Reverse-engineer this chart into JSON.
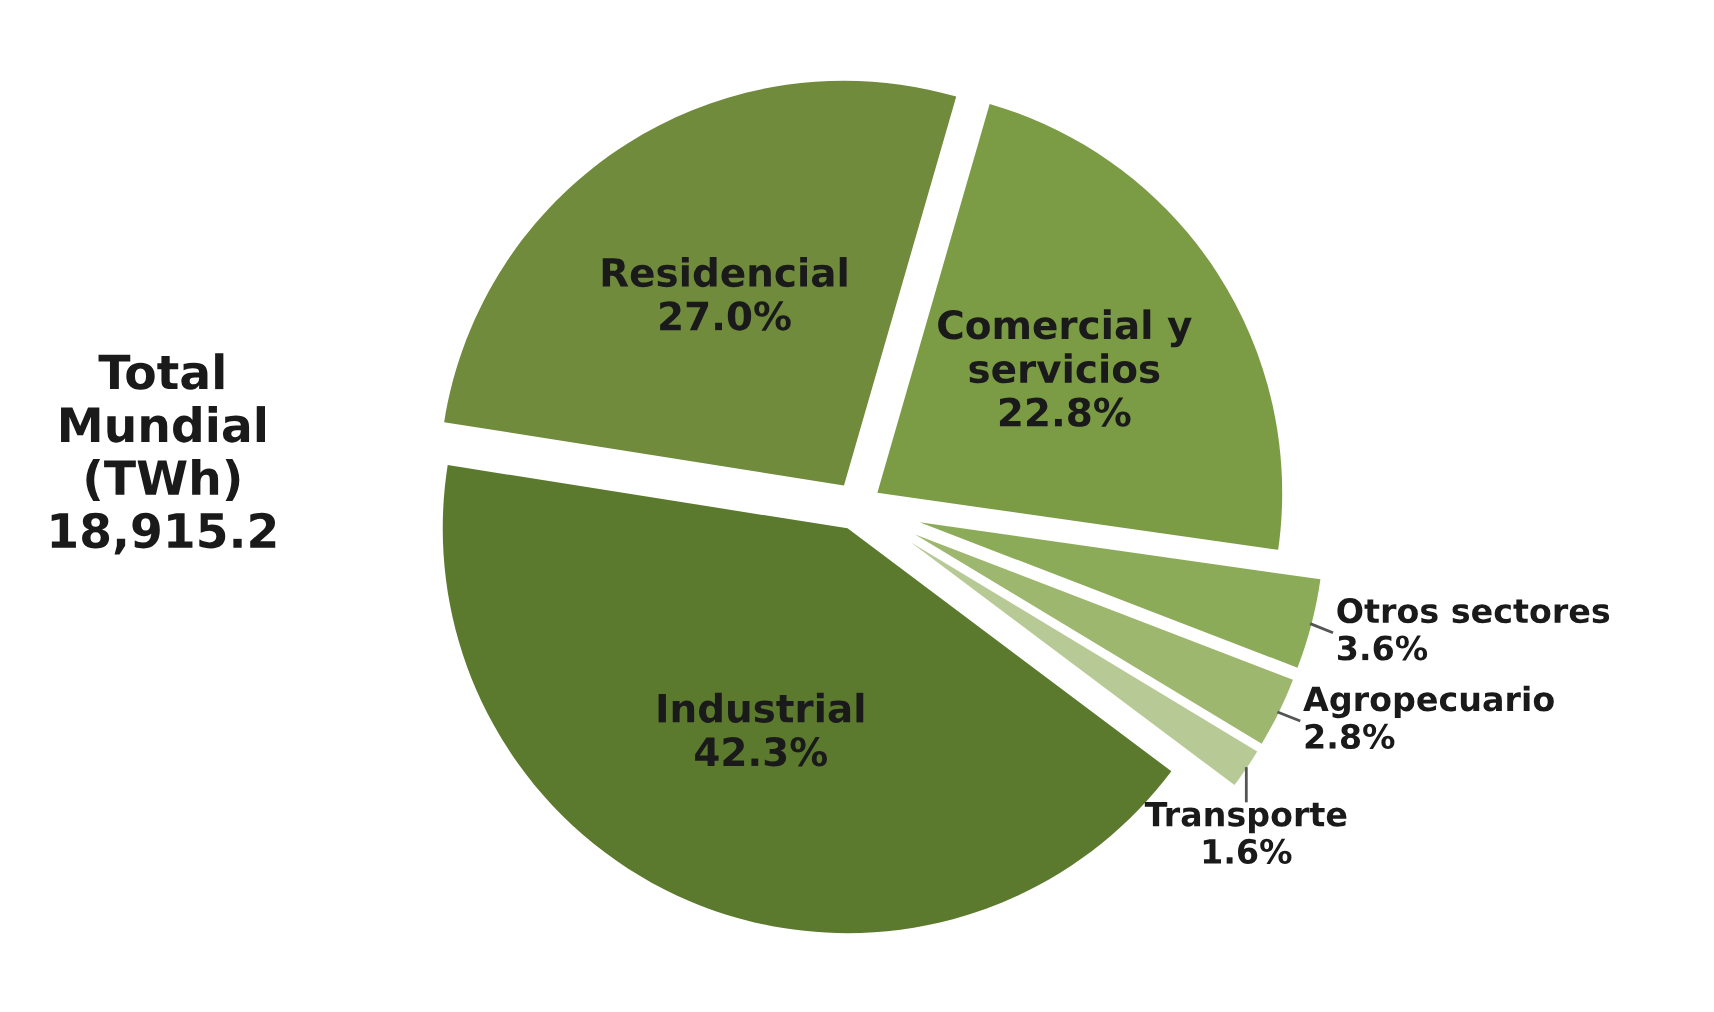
{
  "chart_data": {
    "type": "pie",
    "categories": [
      "Residencial",
      "Comercial y\nservicios",
      "Otros sectores",
      "Agropecuario",
      "Transporte",
      "Industrial"
    ],
    "values": [
      27.0,
      22.8,
      3.6,
      2.8,
      1.6,
      42.3
    ],
    "value_labels": [
      "27.0%",
      "22.8%",
      "3.6%",
      "2.8%",
      "1.6%",
      "42.3%"
    ],
    "colors": [
      "#6f8b3b",
      "#7b9b45",
      "#8cab58",
      "#9db86e",
      "#b7ca96",
      "#5c7a2d"
    ],
    "annotations": [
      "Total\nMundial\n(TWh)\n18,915.2"
    ],
    "legend": false
  }
}
